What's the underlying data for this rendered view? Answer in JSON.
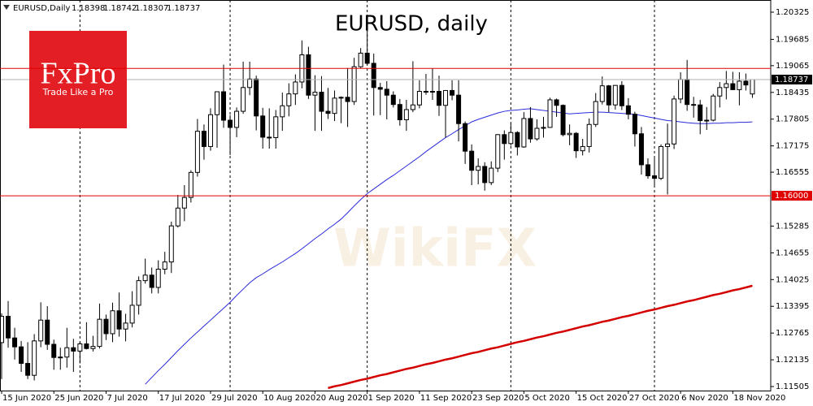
{
  "chart_data": {
    "type": "candlestick",
    "title": "EURUSD, daily",
    "symbol": "EURUSD,Daily",
    "logo": {
      "name": "FxPro",
      "tagline": "Trade Like a Pro"
    },
    "watermark": "WikiFX",
    "bull_color": "#ffffff",
    "bear_color": "#000000",
    "hline_color": "#e00000",
    "ylim": [
      1.1141,
      1.20612
    ],
    "yticks": [
      1.20325,
      1.19685,
      1.19065,
      1.18435,
      1.17805,
      1.17175,
      1.16555,
      1.15285,
      1.14655,
      1.14025,
      1.13395,
      1.12765,
      1.12135,
      1.11505
    ],
    "hlines": [
      {
        "value": 1.19
      },
      {
        "value": 1.16,
        "label": "1.16000"
      }
    ],
    "categories": [
      "15 Jun 2020",
      null,
      null,
      null,
      null,
      null,
      null,
      null,
      "25 Jun 2020",
      null,
      null,
      null,
      null,
      null,
      null,
      null,
      "7 Jul 2020",
      null,
      null,
      null,
      null,
      null,
      null,
      null,
      "17 Jul 2020",
      null,
      null,
      null,
      null,
      null,
      null,
      null,
      "29 Jul 2020",
      null,
      null,
      null,
      null,
      null,
      null,
      null,
      "10 Aug 2020",
      null,
      null,
      null,
      null,
      null,
      null,
      null,
      "20 Aug 2020",
      null,
      null,
      null,
      null,
      null,
      null,
      null,
      "1 Sep 2020",
      null,
      null,
      null,
      null,
      null,
      null,
      null,
      "11 Sep 2020",
      null,
      null,
      null,
      null,
      null,
      null,
      null,
      "23 Sep 2020",
      null,
      null,
      null,
      null,
      null,
      null,
      null,
      "5 Oct 2020",
      null,
      null,
      null,
      null,
      null,
      null,
      null,
      "15 Oct 2020",
      null,
      null,
      null,
      null,
      null,
      null,
      null,
      "27 Oct 2020",
      null,
      null,
      null,
      null,
      null,
      null,
      null,
      "6 Nov 2020",
      null,
      null,
      null,
      null,
      null,
      null,
      null,
      "18 Nov 2020",
      null,
      null,
      null
    ],
    "candles": {
      "open": [
        1.1254,
        1.1316,
        1.1265,
        1.1244,
        1.1205,
        1.1177,
        1.1258,
        1.1307,
        1.125,
        1.1219,
        1.122,
        1.1242,
        1.1234,
        1.1251,
        1.124,
        1.1245,
        1.1309,
        1.1275,
        1.1329,
        1.1286,
        1.13,
        1.1342,
        1.14,
        1.1413,
        1.1384,
        1.1427,
        1.1444,
        1.1529,
        1.1571,
        1.1596,
        1.1655,
        1.1752,
        1.1716,
        1.1791,
        1.1845,
        1.1778,
        1.1761,
        1.1799,
        1.1855,
        1.1875,
        1.1788,
        1.1738,
        1.1737,
        1.1786,
        1.1812,
        1.184,
        1.1868,
        1.1932,
        1.1837,
        1.1844,
        1.1799,
        1.1794,
        1.183,
        1.1832,
        1.1822,
        1.1904,
        1.1936,
        1.1912,
        1.1855,
        1.1851,
        1.1837,
        1.1815,
        1.1779,
        1.1803,
        1.1814,
        1.1846,
        1.1845,
        1.1846,
        1.1813,
        1.1848,
        1.1837,
        1.177,
        1.1705,
        1.166,
        1.1669,
        1.1631,
        1.1665,
        1.1744,
        1.1723,
        1.1749,
        1.1715,
        1.1782,
        1.1734,
        1.1759,
        1.1761,
        1.1826,
        1.1813,
        1.1744,
        1.1747,
        1.1706,
        1.1716,
        1.1768,
        1.1822,
        1.1859,
        1.1814,
        1.186,
        1.1812,
        1.1792,
        1.1746,
        1.1673,
        1.1647,
        1.1641,
        1.1716,
        1.1722,
        1.1828,
        1.1874,
        1.1815,
        1.1814,
        1.1777,
        1.1778,
        1.1835,
        1.1855,
        1.1864,
        1.185,
        1.187,
        1.18398
      ],
      "high": [
        1.1323,
        1.1352,
        1.1289,
        1.1258,
        1.1255,
        1.1274,
        1.1349,
        1.134,
        1.1261,
        1.1242,
        1.1289,
        1.1263,
        1.1256,
        1.1302,
        1.127,
        1.1346,
        1.132,
        1.1348,
        1.1372,
        1.1322,
        1.1375,
        1.141,
        1.1452,
        1.1431,
        1.1448,
        1.1468,
        1.1539,
        1.1602,
        1.1625,
        1.166,
        1.1781,
        1.1768,
        1.1806,
        1.1846,
        1.1909,
        1.179,
        1.1808,
        1.1916,
        1.1916,
        1.1883,
        1.1807,
        1.1806,
        1.1802,
        1.1843,
        1.1865,
        1.1886,
        1.1966,
        1.1951,
        1.1884,
        1.1882,
        1.1854,
        1.1848,
        1.1834,
        1.1901,
        1.1925,
        1.1948,
        1.2011,
        1.1935,
        1.1866,
        1.187,
        1.1846,
        1.1828,
        1.1826,
        1.1917,
        1.1872,
        1.1887,
        1.19,
        1.1883,
        1.1836,
        1.1872,
        1.1872,
        1.1775,
        1.1721,
        1.1688,
        1.1679,
        1.1681,
        1.1745,
        1.1754,
        1.177,
        1.1752,
        1.1797,
        1.1809,
        1.178,
        1.1786,
        1.1831,
        1.1829,
        1.1815,
        1.1768,
        1.175,
        1.1734,
        1.1782,
        1.1842,
        1.1881,
        1.1861,
        1.186,
        1.187,
        1.183,
        1.1798,
        1.1762,
        1.1688,
        1.1691,
        1.1721,
        1.177,
        1.1836,
        1.1891,
        1.192,
        1.1833,
        1.1826,
        1.1809,
        1.184,
        1.1868,
        1.1894,
        1.1892,
        1.1891,
        1.1888,
        1.18742
      ],
      "low": [
        1.1168,
        1.1242,
        1.1214,
        1.1185,
        1.1168,
        1.1165,
        1.1243,
        1.1237,
        1.119,
        1.119,
        1.1195,
        1.1185,
        1.1205,
        1.1238,
        1.1233,
        1.124,
        1.126,
        1.1255,
        1.1268,
        1.1257,
        1.129,
        1.132,
        1.1393,
        1.137,
        1.137,
        1.1415,
        1.1418,
        1.1525,
        1.154,
        1.1584,
        1.1645,
        1.1685,
        1.1706,
        1.1713,
        1.176,
        1.1696,
        1.1738,
        1.1793,
        1.1837,
        1.1754,
        1.1711,
        1.1711,
        1.1711,
        1.1753,
        1.1787,
        1.1814,
        1.1853,
        1.1828,
        1.1753,
        1.1753,
        1.1781,
        1.1776,
        1.1771,
        1.1762,
        1.1814,
        1.1901,
        1.1909,
        1.1789,
        1.179,
        1.178,
        1.1808,
        1.1765,
        1.1753,
        1.1797,
        1.1806,
        1.1838,
        1.1826,
        1.1788,
        1.1737,
        1.1825,
        1.1728,
        1.1675,
        1.1625,
        1.1627,
        1.1612,
        1.1625,
        1.1656,
        1.1685,
        1.1718,
        1.1695,
        1.1713,
        1.1725,
        1.173,
        1.1737,
        1.176,
        1.1786,
        1.174,
        1.1719,
        1.1689,
        1.1695,
        1.1702,
        1.1762,
        1.1815,
        1.1797,
        1.1803,
        1.1802,
        1.178,
        1.1716,
        1.165,
        1.164,
        1.1622,
        1.1637,
        1.1603,
        1.171,
        1.1818,
        1.18,
        1.1784,
        1.1745,
        1.1755,
        1.1775,
        1.1808,
        1.1827,
        1.185,
        1.1813,
        1.1848,
        1.18307
      ],
      "close": [
        1.1316,
        1.1265,
        1.1244,
        1.1205,
        1.1177,
        1.1258,
        1.1307,
        1.125,
        1.1219,
        1.122,
        1.1242,
        1.1234,
        1.1251,
        1.124,
        1.1245,
        1.1309,
        1.1275,
        1.1329,
        1.1286,
        1.13,
        1.1342,
        1.14,
        1.1413,
        1.1384,
        1.1427,
        1.1444,
        1.1529,
        1.1571,
        1.1596,
        1.1655,
        1.1752,
        1.1716,
        1.1791,
        1.1845,
        1.1778,
        1.1761,
        1.1799,
        1.1855,
        1.1875,
        1.1788,
        1.1738,
        1.1737,
        1.1786,
        1.1812,
        1.184,
        1.1868,
        1.1932,
        1.1837,
        1.1844,
        1.1799,
        1.1794,
        1.183,
        1.1832,
        1.1822,
        1.1904,
        1.1936,
        1.1912,
        1.1855,
        1.1851,
        1.1837,
        1.1815,
        1.1779,
        1.1803,
        1.1814,
        1.1846,
        1.1845,
        1.1846,
        1.1813,
        1.1848,
        1.1837,
        1.177,
        1.1705,
        1.166,
        1.1669,
        1.1631,
        1.1665,
        1.1744,
        1.1723,
        1.1749,
        1.1715,
        1.1782,
        1.1734,
        1.1759,
        1.1761,
        1.1826,
        1.1813,
        1.1744,
        1.1747,
        1.1706,
        1.1716,
        1.1768,
        1.1822,
        1.1859,
        1.1814,
        1.186,
        1.1812,
        1.1792,
        1.1746,
        1.1673,
        1.1647,
        1.1641,
        1.1716,
        1.1722,
        1.1828,
        1.1874,
        1.1815,
        1.1814,
        1.1777,
        1.1778,
        1.1835,
        1.1855,
        1.1864,
        1.185,
        1.187,
        1.1861,
        1.18737
      ]
    },
    "lines": [
      {
        "color": "#2a2ad8",
        "width": 1,
        "values": [
          null,
          null,
          null,
          null,
          null,
          null,
          null,
          null,
          null,
          null,
          null,
          null,
          null,
          null,
          null,
          null,
          null,
          null,
          null,
          null,
          null,
          null,
          1.1156,
          1.1172,
          1.1188,
          1.1203,
          1.1219,
          1.1235,
          1.125,
          1.1265,
          1.1279,
          1.1293,
          1.1307,
          1.1321,
          1.1335,
          1.1349,
          1.1365,
          1.138,
          1.1395,
          1.1407,
          1.1416,
          1.1426,
          1.1435,
          1.1444,
          1.1454,
          1.1464,
          1.1475,
          1.1487,
          1.1499,
          1.151,
          1.1522,
          1.1533,
          1.1545,
          1.156,
          1.1576,
          1.1591,
          1.1605,
          1.1616,
          1.1627,
          1.1638,
          1.1648,
          1.1659,
          1.167,
          1.1681,
          1.1692,
          1.1704,
          1.1715,
          1.1726,
          1.1737,
          1.1746,
          1.1756,
          1.1765,
          1.1774,
          1.178,
          1.1785,
          1.179,
          1.1795,
          1.1799,
          1.1801,
          1.1802,
          1.1804,
          1.1805,
          1.1803,
          1.1801,
          1.1799,
          1.1797,
          1.1795,
          1.1793,
          1.1794,
          1.1795,
          1.1796,
          1.1797,
          1.1797,
          1.1796,
          1.1795,
          1.1794,
          1.1793,
          1.1792,
          1.1789,
          1.1786,
          1.1783,
          1.178,
          1.1777,
          1.1776,
          1.1774,
          1.1772,
          1.1771,
          1.177,
          1.177,
          1.1771,
          1.1771,
          1.1772,
          1.1772,
          1.1773,
          1.1773,
          1.1774
        ]
      },
      {
        "color": "#d40000",
        "width": 2.5,
        "values": [
          null,
          null,
          null,
          null,
          null,
          null,
          null,
          null,
          null,
          null,
          null,
          null,
          null,
          null,
          null,
          null,
          null,
          null,
          null,
          null,
          null,
          null,
          null,
          null,
          null,
          null,
          null,
          null,
          null,
          null,
          null,
          null,
          null,
          null,
          null,
          null,
          null,
          null,
          null,
          null,
          null,
          null,
          null,
          null,
          null,
          null,
          null,
          null,
          null,
          null,
          1.1147,
          1.1151,
          1.1154,
          1.1158,
          1.1162,
          1.1166,
          1.1169,
          1.1173,
          1.1177,
          1.118,
          1.1184,
          1.1188,
          1.1192,
          1.1195,
          1.1199,
          1.1203,
          1.1206,
          1.121,
          1.1214,
          1.1217,
          1.1221,
          1.1225,
          1.1229,
          1.1232,
          1.1236,
          1.124,
          1.1243,
          1.1247,
          1.1251,
          1.1255,
          1.1258,
          1.1262,
          1.1266,
          1.1269,
          1.1273,
          1.1277,
          1.128,
          1.1284,
          1.1288,
          1.1292,
          1.1295,
          1.1299,
          1.1303,
          1.1306,
          1.131,
          1.1314,
          1.1317,
          1.1321,
          1.1325,
          1.1329,
          1.1332,
          1.1336,
          1.134,
          1.1343,
          1.1347,
          1.1351,
          1.1354,
          1.1358,
          1.1362,
          1.1366,
          1.1369,
          1.1373,
          1.1377,
          1.138,
          1.1384,
          1.1388
        ]
      }
    ]
  }
}
